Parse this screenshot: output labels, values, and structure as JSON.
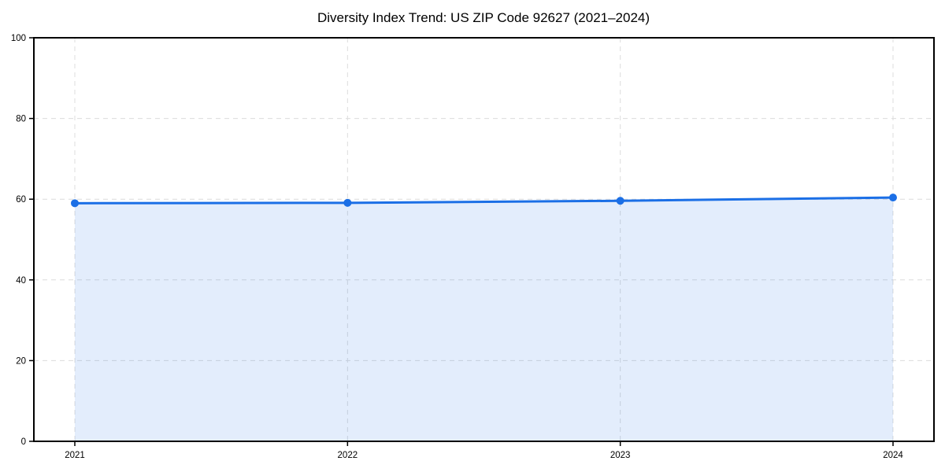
{
  "chart_data": {
    "type": "area",
    "title": "Diversity Index Trend: US ZIP Code 92627 (2021–2024)",
    "categories": [
      "2021",
      "2022",
      "2023",
      "2024"
    ],
    "series": [
      {
        "name": "Diversity Index",
        "values": [
          59.0,
          59.1,
          59.6,
          60.4
        ]
      }
    ],
    "xlabel": "",
    "ylabel": "",
    "ylim": [
      0,
      100
    ],
    "yticks": [
      0,
      20,
      40,
      60,
      80,
      100
    ],
    "grid": true,
    "grid_style": "dashed",
    "legend": "none",
    "marker": "circle",
    "colors": {
      "line": "#1b6fe6",
      "fill": "rgba(27,111,230,0.12)",
      "grid": "#dcdcdc",
      "axis": "#000000",
      "text": "#000000",
      "background": "#ffffff"
    }
  }
}
